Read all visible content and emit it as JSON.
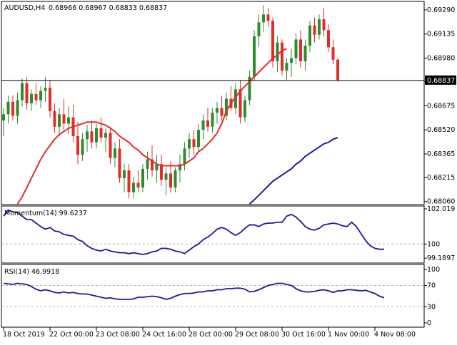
{
  "chart_data": [
    {
      "type": "candlestick",
      "panel": "main",
      "symbol_label": "AUDUSD,H4",
      "ohlc_header": "0.68966 0.68967 0.68833 0.68837",
      "price_labels": [
        "0.69290",
        "0.69135",
        "0.68980",
        "0.68830",
        "0.68675",
        "0.68520",
        "0.68365",
        "0.68215",
        "0.68060"
      ],
      "current_price_label": "0.68837",
      "current_price": 0.68837,
      "ylim": [
        0.68045,
        0.69335
      ],
      "time_labels": [
        "18 Oct 2019",
        "22 Oct 00:00",
        "23 Oct 08:00",
        "24 Oct 16:00",
        "28 Oct 00:00",
        "29 Oct 08:00",
        "30 Oct 16:00",
        "1 Nov 00:00",
        "4 Nov 08:00"
      ],
      "time_label_index": [
        0,
        10,
        20,
        30,
        40,
        50,
        60,
        70,
        80
      ],
      "up_color": "#2e8b2e",
      "down_color": "#e52a2a",
      "candles": [
        [
          0.6858,
          0.6866,
          0.6848,
          0.6862
        ],
        [
          0.6862,
          0.6874,
          0.6856,
          0.687
        ],
        [
          0.687,
          0.6874,
          0.6858,
          0.6861
        ],
        [
          0.6861,
          0.6876,
          0.6856,
          0.6871
        ],
        [
          0.6871,
          0.6885,
          0.6867,
          0.6882
        ],
        [
          0.6882,
          0.6886,
          0.6865,
          0.6869
        ],
        [
          0.6869,
          0.6878,
          0.6864,
          0.6875
        ],
        [
          0.6875,
          0.6882,
          0.6868,
          0.6871
        ],
        [
          0.6871,
          0.688,
          0.6866,
          0.6877
        ],
        [
          0.6877,
          0.6886,
          0.687,
          0.6879
        ],
        [
          0.6879,
          0.6884,
          0.686,
          0.6864
        ],
        [
          0.6864,
          0.6869,
          0.685,
          0.6854
        ],
        [
          0.6854,
          0.6866,
          0.6848,
          0.6862
        ],
        [
          0.6862,
          0.6872,
          0.6852,
          0.6856
        ],
        [
          0.6856,
          0.6867,
          0.6849,
          0.686
        ],
        [
          0.686,
          0.6868,
          0.6844,
          0.6848
        ],
        [
          0.6848,
          0.6857,
          0.683,
          0.6836
        ],
        [
          0.6836,
          0.685,
          0.6832,
          0.6846
        ],
        [
          0.6846,
          0.6855,
          0.6838,
          0.6851
        ],
        [
          0.6851,
          0.6858,
          0.684,
          0.6844
        ],
        [
          0.6844,
          0.6856,
          0.684,
          0.6853
        ],
        [
          0.6853,
          0.686,
          0.6844,
          0.6847
        ],
        [
          0.6847,
          0.6853,
          0.6838,
          0.685
        ],
        [
          0.685,
          0.6854,
          0.683,
          0.6834
        ],
        [
          0.6834,
          0.6844,
          0.6828,
          0.684
        ],
        [
          0.684,
          0.6846,
          0.6818,
          0.6821
        ],
        [
          0.6821,
          0.683,
          0.6812,
          0.6826
        ],
        [
          0.6826,
          0.683,
          0.6808,
          0.6812
        ],
        [
          0.6812,
          0.6822,
          0.6808,
          0.6818
        ],
        [
          0.6818,
          0.6826,
          0.6812,
          0.6815
        ],
        [
          0.6815,
          0.683,
          0.6812,
          0.6827
        ],
        [
          0.6827,
          0.6838,
          0.682,
          0.6833
        ],
        [
          0.6833,
          0.6842,
          0.6822,
          0.6826
        ],
        [
          0.6826,
          0.6836,
          0.6818,
          0.683
        ],
        [
          0.683,
          0.6836,
          0.6816,
          0.682
        ],
        [
          0.682,
          0.6828,
          0.681,
          0.6824
        ],
        [
          0.6824,
          0.6832,
          0.6812,
          0.6815
        ],
        [
          0.6815,
          0.6828,
          0.6812,
          0.6826
        ],
        [
          0.6826,
          0.6836,
          0.6818,
          0.683
        ],
        [
          0.683,
          0.6844,
          0.6826,
          0.684
        ],
        [
          0.684,
          0.685,
          0.6834,
          0.6846
        ],
        [
          0.6846,
          0.6852,
          0.6836,
          0.6841
        ],
        [
          0.6841,
          0.6856,
          0.6838,
          0.6852
        ],
        [
          0.6852,
          0.6862,
          0.6846,
          0.6858
        ],
        [
          0.6858,
          0.6866,
          0.6851,
          0.6854
        ],
        [
          0.6854,
          0.6866,
          0.685,
          0.6863
        ],
        [
          0.6863,
          0.687,
          0.6856,
          0.6866
        ],
        [
          0.6866,
          0.6874,
          0.6858,
          0.6861
        ],
        [
          0.6861,
          0.6876,
          0.6858,
          0.6872
        ],
        [
          0.6872,
          0.688,
          0.6864,
          0.6866
        ],
        [
          0.6866,
          0.6882,
          0.6862,
          0.6878
        ],
        [
          0.6878,
          0.6884,
          0.6856,
          0.686
        ],
        [
          0.686,
          0.6874,
          0.6857,
          0.6871
        ],
        [
          0.6871,
          0.689,
          0.6868,
          0.6886
        ],
        [
          0.6886,
          0.6916,
          0.6884,
          0.6912
        ],
        [
          0.6912,
          0.6926,
          0.6905,
          0.6921
        ],
        [
          0.6921,
          0.6932,
          0.6915,
          0.6926
        ],
        [
          0.6926,
          0.693,
          0.6918,
          0.6922
        ],
        [
          0.6922,
          0.6924,
          0.6892,
          0.6896
        ],
        [
          0.6896,
          0.6912,
          0.6889,
          0.6908
        ],
        [
          0.6908,
          0.691,
          0.6887,
          0.689
        ],
        [
          0.689,
          0.6898,
          0.6884,
          0.6895
        ],
        [
          0.6895,
          0.6904,
          0.6886,
          0.6898
        ],
        [
          0.6898,
          0.6914,
          0.6894,
          0.691
        ],
        [
          0.691,
          0.6916,
          0.6892,
          0.6896
        ],
        [
          0.6896,
          0.691,
          0.689,
          0.6906
        ],
        [
          0.6906,
          0.6922,
          0.6902,
          0.6919
        ],
        [
          0.6919,
          0.6924,
          0.6908,
          0.6913
        ],
        [
          0.6913,
          0.6926,
          0.691,
          0.6923
        ],
        [
          0.6923,
          0.693,
          0.6912,
          0.6916
        ],
        [
          0.6916,
          0.692,
          0.6902,
          0.6905
        ],
        [
          0.6905,
          0.691,
          0.6894,
          0.6897
        ],
        [
          0.6897,
          0.6898,
          0.6883,
          0.6884
        ]
      ],
      "sma_color": "#e52a2a",
      "sma": [
        0.68045,
        0.6809,
        0.6815,
        0.6821,
        0.6827,
        0.6833,
        0.6838,
        0.6842,
        0.6846,
        0.6849,
        0.6851,
        0.6853,
        0.6854,
        0.6855,
        0.6856,
        0.6857,
        0.6857,
        0.6857,
        0.6856,
        0.6855,
        0.6853,
        0.6851,
        0.6848,
        0.6846,
        0.6844,
        0.6841,
        0.6839,
        0.6836,
        0.6834,
        0.6832,
        0.683,
        0.6829,
        0.6829,
        0.6829,
        0.6829,
        0.6829,
        0.683,
        0.6832,
        0.6834,
        0.6838,
        0.684,
        0.6843,
        0.6846,
        0.685,
        0.6856,
        0.6864,
        0.6869,
        0.6873,
        0.6877,
        0.688,
        0.6883,
        0.6886,
        0.6889,
        0.6892,
        0.6895,
        0.6898,
        0.69,
        0.6903,
        0.6904
      ],
      "sma_start_index": 3,
      "slow_ma_color": "#1a1aa0",
      "slow_ma": [
        0.68045,
        0.6807,
        0.681,
        0.6813,
        0.6816,
        0.6819,
        0.6821,
        0.6823,
        0.6825,
        0.6827,
        0.683,
        0.6832,
        0.6835,
        0.6837,
        0.6839,
        0.6841,
        0.6843,
        0.6844,
        0.6846,
        0.6847
      ],
      "slow_ma_start_index": 53
    },
    {
      "type": "line",
      "panel": "momentum",
      "label": "Momentum(14) 99.6237",
      "y_labels": [
        "102.019",
        "100",
        "99.1897"
      ],
      "ylim": [
        98.95,
        102.1
      ],
      "level": 100,
      "color": "#1a1aa0",
      "values": [
        101.6,
        101.95,
        101.85,
        101.8,
        101.6,
        101.4,
        101.4,
        101.2,
        101.0,
        100.85,
        100.95,
        100.75,
        100.7,
        100.55,
        100.5,
        100.45,
        100.25,
        100.15,
        99.9,
        99.75,
        99.65,
        99.6,
        99.7,
        99.6,
        99.55,
        99.5,
        99.5,
        99.45,
        99.5,
        99.45,
        99.4,
        99.45,
        99.55,
        99.6,
        99.75,
        99.75,
        99.7,
        99.6,
        99.55,
        99.45,
        99.65,
        99.85,
        100.0,
        100.25,
        100.4,
        100.6,
        100.85,
        100.95,
        100.85,
        100.65,
        100.5,
        100.65,
        100.9,
        101.1,
        101.1,
        101.0,
        101.15,
        101.2,
        101.2,
        101.25,
        101.25,
        101.6,
        101.7,
        101.55,
        101.3,
        101.0,
        100.85,
        100.8,
        100.9,
        101.1,
        101.15,
        101.2,
        101.15,
        101.05,
        101.0,
        101.25,
        101.0,
        100.6,
        100.2,
        99.9,
        99.75,
        99.7,
        99.7
      ],
      "start_index": 0
    },
    {
      "type": "line",
      "panel": "rsi",
      "label": "RSI(14) 46.9918",
      "y_labels": [
        "100",
        "70",
        "30",
        "0"
      ],
      "ylim": [
        0,
        100
      ],
      "levels": [
        70,
        30
      ],
      "color": "#1a1aa0",
      "values": [
        72,
        70,
        72,
        73,
        74,
        74,
        74,
        73,
        72,
        74,
        73,
        72,
        68,
        63,
        60,
        62,
        60,
        57,
        56,
        58,
        56,
        57,
        55,
        54,
        54,
        52,
        50,
        48,
        46,
        47,
        45,
        44,
        44,
        44,
        45,
        48,
        48,
        49,
        50,
        49,
        47,
        44,
        46,
        50,
        53,
        55,
        55,
        56,
        58,
        58,
        60,
        60,
        62,
        62,
        64,
        64,
        65,
        65,
        63,
        58,
        59,
        62,
        66,
        70,
        72,
        74,
        74,
        72,
        70,
        64,
        60,
        58,
        58,
        59,
        61,
        62,
        60,
        57,
        60,
        60,
        62,
        62,
        61,
        60,
        61,
        58,
        55,
        50,
        47
      ],
      "start_index": -6
    }
  ]
}
